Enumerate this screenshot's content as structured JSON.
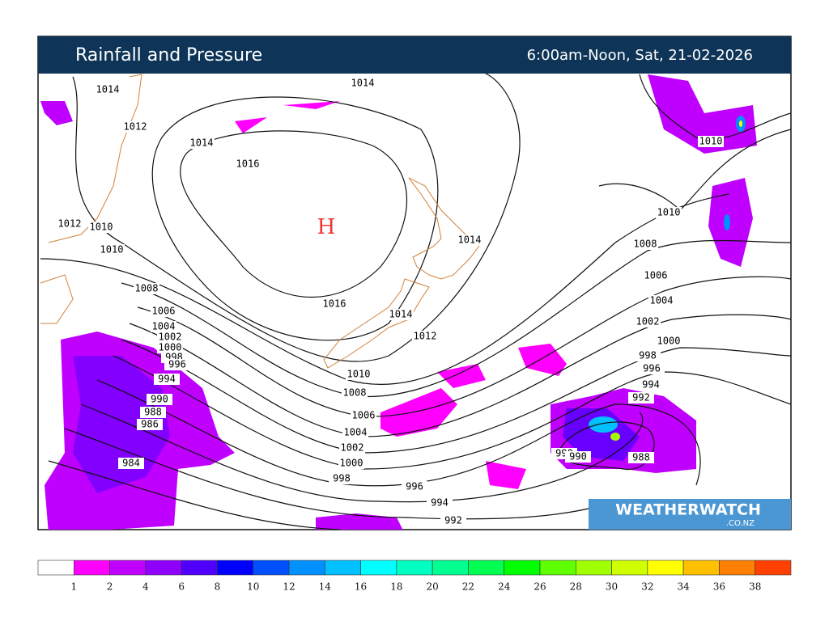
{
  "header": {
    "title": "Rainfall and Pressure",
    "time": "6:00am-Noon, Sat, 21-02-2026"
  },
  "high_label": "H",
  "pressure_labels": [
    "1014",
    "1012",
    "1014",
    "1016",
    "1012",
    "1010",
    "1010",
    "1014",
    "1014",
    "1016",
    "1014",
    "1012",
    "1010",
    "1008",
    "1006",
    "1004",
    "1002",
    "1000",
    "998",
    "996",
    "994",
    "990",
    "988",
    "986",
    "984",
    "1008",
    "1006",
    "1004",
    "1002",
    "1000",
    "998",
    "996",
    "994",
    "992",
    "1010",
    "1010",
    "1008",
    "1006",
    "1004",
    "1002",
    "1000",
    "998",
    "996",
    "994",
    "992",
    "990",
    "990",
    "988"
  ],
  "logo": {
    "name": "WEATHERWATCH",
    "domain": ".CO.NZ"
  },
  "legend": {
    "labels": [
      "1",
      "2",
      "4",
      "6",
      "8",
      "10",
      "12",
      "14",
      "16",
      "18",
      "20",
      "22",
      "24",
      "26",
      "28",
      "30",
      "32",
      "34",
      "36",
      "38"
    ],
    "colors": [
      "#ffffff",
      "#ff00ff",
      "#c000ff",
      "#9000ff",
      "#5000ff",
      "#0000ff",
      "#0050ff",
      "#0090ff",
      "#00c0ff",
      "#00ffff",
      "#00ffc0",
      "#00ff90",
      "#00ff50",
      "#00ff00",
      "#60ff00",
      "#a0ff00",
      "#d0ff00",
      "#ffff00",
      "#ffc000",
      "#ff8000",
      "#ff4000"
    ]
  }
}
